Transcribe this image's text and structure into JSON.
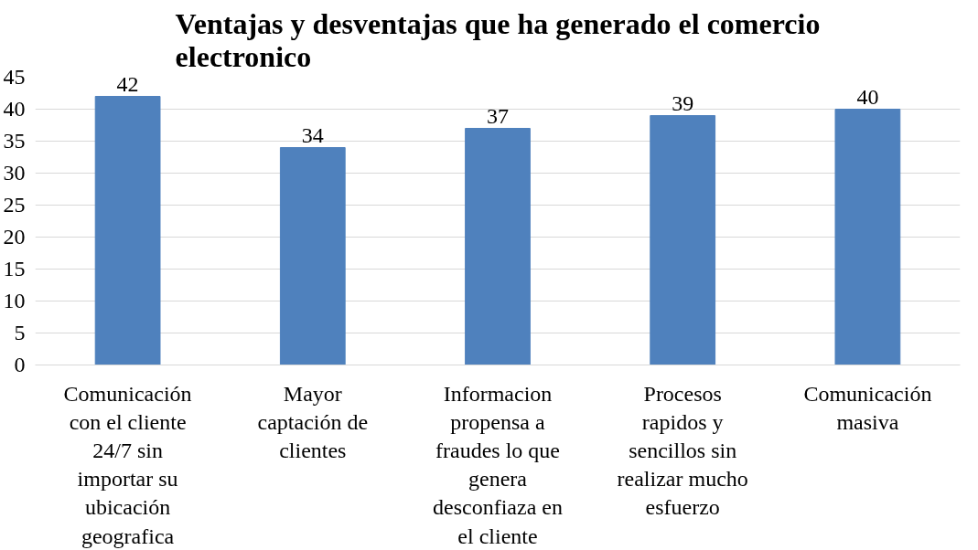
{
  "chart_data": {
    "type": "bar",
    "title": "Ventajas y desventajas que ha generado el comercio electronico",
    "categories": [
      "Comunicación con el cliente 24/7 sin importar su ubicación geografica",
      "Mayor captación de clientes",
      "Informacion propensa a fraudes lo que genera desconfiaza en el cliente",
      "Procesos rapidos y sencillos sin realizar mucho esfuerzo",
      "Comunicación masiva"
    ],
    "values": [
      42,
      34,
      37,
      39,
      40
    ],
    "color": "#4f81bd",
    "ylim": [
      0,
      45
    ],
    "yticks": [
      0,
      5,
      10,
      15,
      20,
      25,
      30,
      35,
      40,
      45
    ],
    "grid": "y",
    "data_labels": true
  }
}
